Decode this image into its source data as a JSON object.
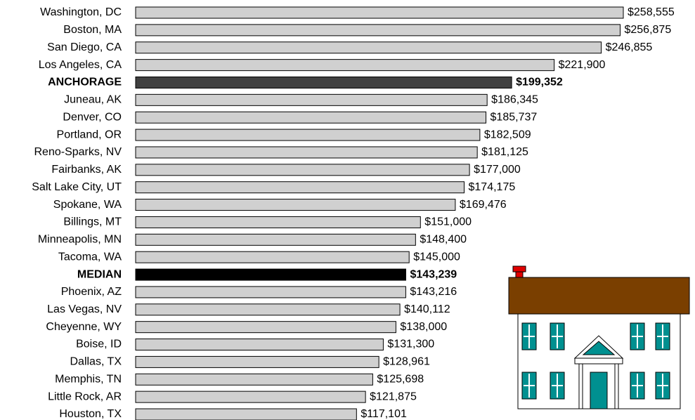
{
  "chart_data": {
    "type": "bar",
    "orientation": "horizontal",
    "categories": [
      "Washington, DC",
      "Boston, MA",
      "San Diego, CA",
      "Los Angeles, CA",
      "ANCHORAGE",
      "Juneau, AK",
      "Denver, CO",
      "Portland, OR",
      "Reno-Sparks, NV",
      "Fairbanks, AK",
      "Salt Lake City, UT",
      "Spokane, WA",
      "Billings, MT",
      "Minneapolis, MN",
      "Tacoma, WA",
      "MEDIAN",
      "Phoenix, AZ",
      "Las Vegas, NV",
      "Cheyenne, WY",
      "Boise, ID",
      "Dallas, TX",
      "Memphis, TN",
      "Little Rock, AR",
      "Houston, TX"
    ],
    "values": [
      258555,
      256875,
      246855,
      221900,
      199352,
      186345,
      185737,
      182509,
      181125,
      177000,
      174175,
      169476,
      151000,
      148400,
      145000,
      143239,
      143216,
      140112,
      138000,
      131300,
      128961,
      125698,
      121875,
      117101
    ],
    "value_labels": [
      "$258,555",
      "$256,875",
      "$246,855",
      "$221,900",
      "$199,352",
      "$186,345",
      "$185,737",
      "$182,509",
      "$181,125",
      "$177,000",
      "$174,175",
      "$169,476",
      "$151,000",
      "$148,400",
      "$145,000",
      "$143,239",
      "$143,216",
      "$140,112",
      "$138,000",
      "$131,300",
      "$128,961",
      "$125,698",
      "$121,875",
      "$117,101"
    ],
    "color": "#d0d0d0",
    "colors": [
      "#d0d0d0",
      "#d0d0d0",
      "#d0d0d0",
      "#d0d0d0",
      "#404040",
      "#d0d0d0",
      "#d0d0d0",
      "#d0d0d0",
      "#d0d0d0",
      "#d0d0d0",
      "#d0d0d0",
      "#d0d0d0",
      "#d0d0d0",
      "#d0d0d0",
      "#d0d0d0",
      "#000000",
      "#d0d0d0",
      "#d0d0d0",
      "#d0d0d0",
      "#d0d0d0",
      "#d0d0d0",
      "#d0d0d0",
      "#d0d0d0",
      "#d0d0d0"
    ]
  }
}
